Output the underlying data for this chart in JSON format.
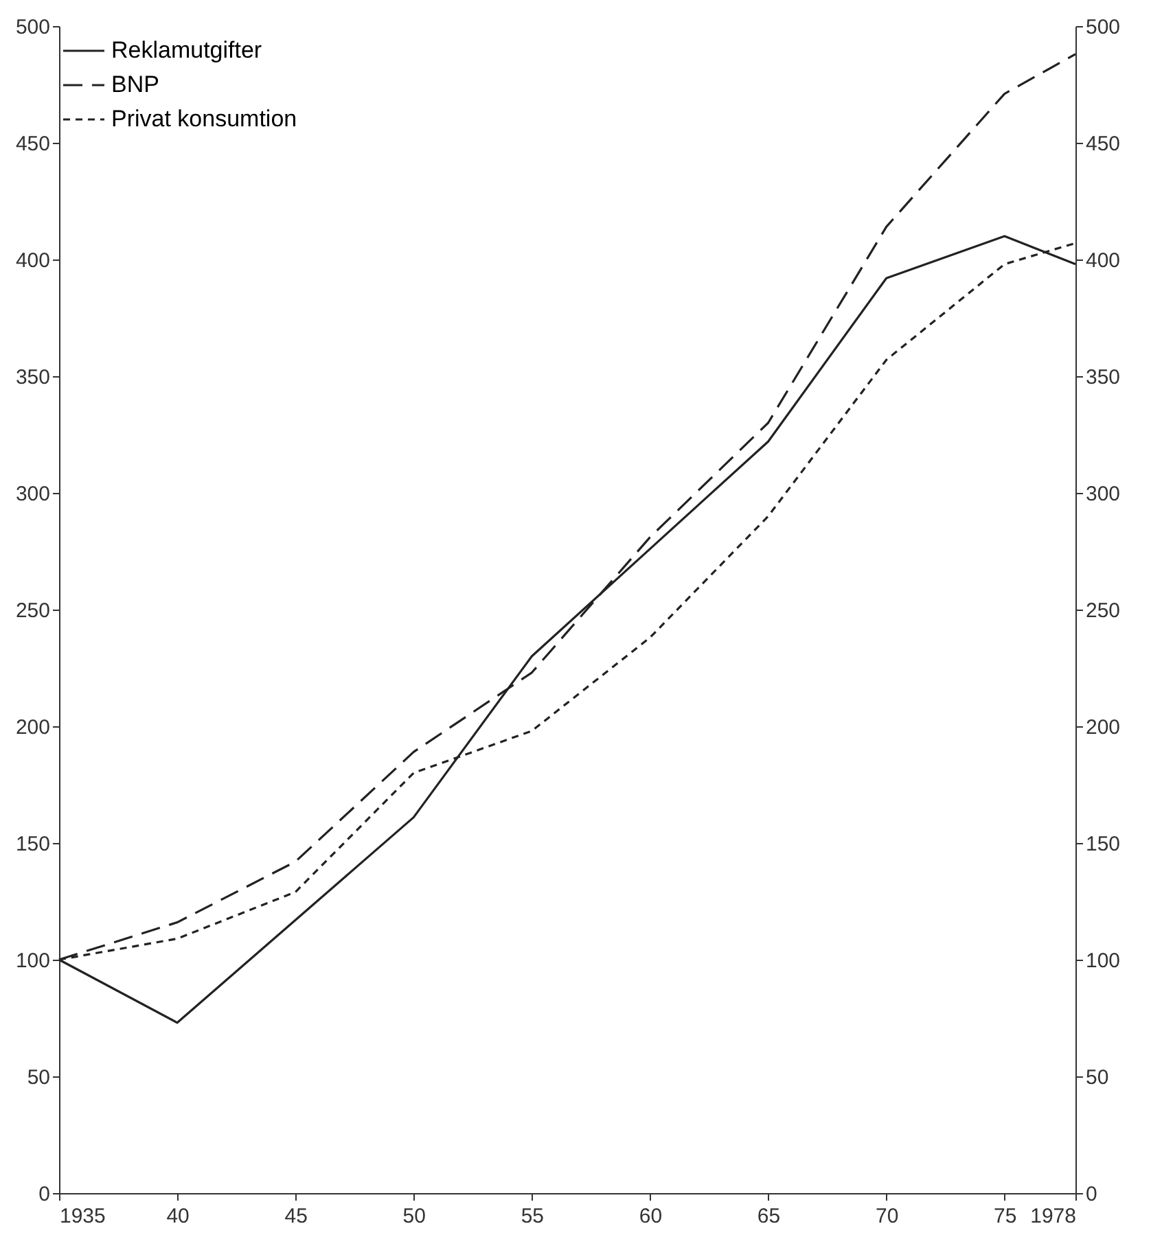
{
  "chart_data": {
    "type": "line",
    "x": [
      1935,
      1940,
      1945,
      1950,
      1955,
      1960,
      1965,
      1970,
      1975,
      1978
    ],
    "series": [
      {
        "name": "Reklamutgifter",
        "color": "#222222",
        "line_style": "solid",
        "values": [
          100,
          73,
          117,
          161,
          230,
          276,
          322,
          392,
          410,
          398
        ]
      },
      {
        "name": "BNP",
        "color": "#222222",
        "line_style": "dashed",
        "values": [
          100,
          116,
          142,
          189,
          223,
          281,
          330,
          414,
          471,
          488
        ]
      },
      {
        "name": "Privat konsumtion",
        "color": "#222222",
        "line_style": "dotted",
        "values": [
          100,
          109,
          129,
          180,
          198,
          238,
          290,
          357,
          398,
          407
        ]
      }
    ],
    "xlim": [
      1935,
      1978
    ],
    "xticks": [
      {
        "value": 1935,
        "label": "1935"
      },
      {
        "value": 1940,
        "label": "40"
      },
      {
        "value": 1945,
        "label": "45"
      },
      {
        "value": 1950,
        "label": "50"
      },
      {
        "value": 1955,
        "label": "55"
      },
      {
        "value": 1960,
        "label": "60"
      },
      {
        "value": 1965,
        "label": "65"
      },
      {
        "value": 1970,
        "label": "70"
      },
      {
        "value": 1975,
        "label": "75"
      },
      {
        "value": 1978,
        "label": "1978"
      }
    ],
    "ylim": [
      0,
      500
    ],
    "yticks": [
      0,
      50,
      100,
      150,
      200,
      250,
      300,
      350,
      400,
      450,
      500
    ],
    "y2lim": [
      0,
      500
    ],
    "y2ticks": [
      0,
      50,
      100,
      150,
      200,
      250,
      300,
      350,
      400,
      450,
      500
    ],
    "grid": false,
    "legend": "top left",
    "marker": "none"
  }
}
